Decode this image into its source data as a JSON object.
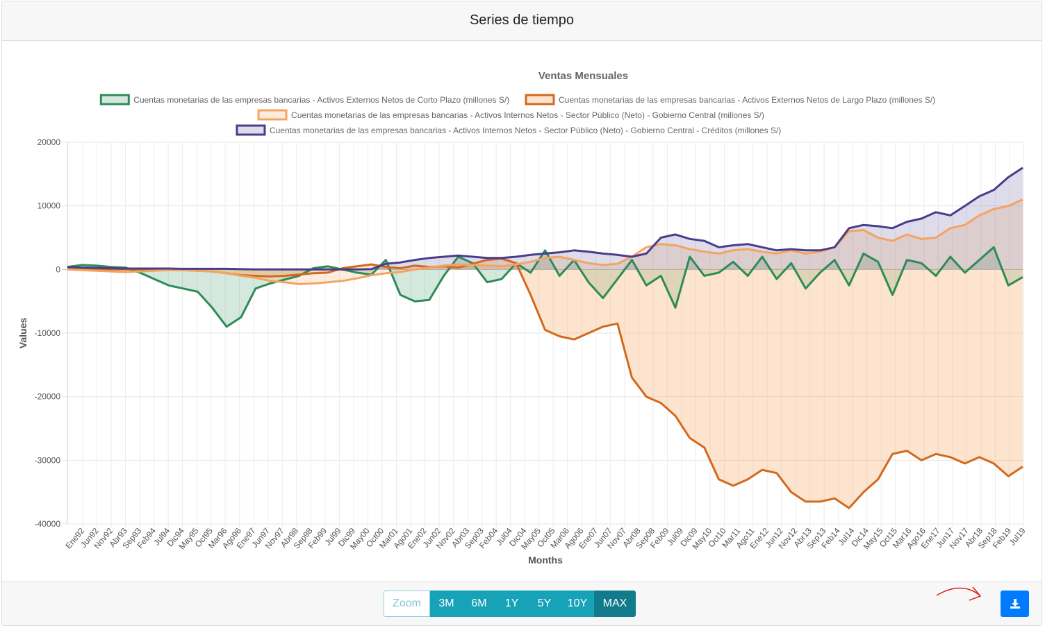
{
  "header": {
    "title": "Series de tiempo"
  },
  "footer": {
    "buttons": [
      "Zoom",
      "3M",
      "6M",
      "1Y",
      "5Y",
      "10Y",
      "MAX"
    ],
    "active": "MAX",
    "download_icon": "download-icon"
  },
  "colors": {
    "green": "#2e8b57",
    "orange_dark": "#d2691e",
    "orange_light": "#f4a460",
    "purple": "#483d8b",
    "primary": "#007bff",
    "info": "#17a2b8"
  },
  "chart_data": {
    "type": "area",
    "title": "Ventas Mensuales",
    "xlabel": "Months",
    "ylabel": "Values",
    "ylim": [
      -40000,
      20000
    ],
    "yticks": [
      20000,
      10000,
      0,
      -10000,
      -20000,
      -30000,
      -40000
    ],
    "grid": true,
    "legend_position": "top",
    "x_tick_labels": [
      "Ene92",
      "Jun92",
      "Nov92",
      "Abr93",
      "Sep93",
      "Feb94",
      "Jul94",
      "Dic94",
      "May95",
      "Oct95",
      "Mar96",
      "Ago96",
      "Ene97",
      "Jun97",
      "Nov97",
      "Abr98",
      "Sep98",
      "Feb99",
      "Jul99",
      "Dic99",
      "May00",
      "Oct00",
      "Mar01",
      "Ago01",
      "Ene02",
      "Jun02",
      "Nov02",
      "Abr03",
      "Sep03",
      "Feb04",
      "Jul04",
      "Dic04",
      "May05",
      "Oct05",
      "Mar06",
      "Ago06",
      "Ene07",
      "Jun07",
      "Nov07",
      "Abr08",
      "Sep08",
      "Feb09",
      "Jul09",
      "Dic09",
      "May10",
      "Oct10",
      "Mar11",
      "Ago11",
      "Ene12",
      "Jun12",
      "Nov12",
      "Abr13",
      "Sep13",
      "Feb14",
      "Jul14",
      "Dic14",
      "May15",
      "Oct15",
      "Mar16",
      "Ago16",
      "Ene17",
      "Jun17",
      "Nov17",
      "Abr18",
      "Sep18",
      "Feb19",
      "Jul19"
    ],
    "series": [
      {
        "name": "Cuentas monetarias de las empresas bancarias - Activos Externos Netos de Corto Plazo (millones S/)",
        "color": "#2e8b57",
        "fill": "rgba(46,139,87,0.2)",
        "values": [
          400,
          700,
          600,
          400,
          300,
          -500,
          -1500,
          -2500,
          -3000,
          -3500,
          -6000,
          -9000,
          -7500,
          -3000,
          -2200,
          -1600,
          -1000,
          200,
          500,
          0,
          -500,
          -800,
          1500,
          -4000,
          -5000,
          -4800,
          -1000,
          2000,
          1000,
          -2000,
          -1500,
          1000,
          -500,
          3000,
          -1000,
          1500,
          -2000,
          -4500,
          -1500,
          1500,
          -2500,
          -1000,
          -6000,
          2000,
          -1000,
          -500,
          1200,
          -1000,
          2000,
          -1500,
          1000,
          -3000,
          -500,
          1500,
          -2500,
          2500,
          1200,
          -4000,
          1500,
          1000,
          -1000,
          2000,
          -500,
          1500,
          3500,
          -2500,
          -1200
        ]
      },
      {
        "name": "Cuentas monetarias de las empresas bancarias - Activos Externos Netos de Largo Plazo (millones S/)",
        "color": "#d2691e",
        "fill": "rgba(244,164,96,0.3)",
        "values": [
          200,
          100,
          50,
          0,
          0,
          0,
          0,
          -50,
          -100,
          -200,
          -300,
          -600,
          -900,
          -1000,
          -1100,
          -1000,
          -800,
          -600,
          -500,
          200,
          500,
          800,
          400,
          200,
          600,
          400,
          500,
          300,
          900,
          1500,
          1700,
          1000,
          -4000,
          -9500,
          -10500,
          -11000,
          -10000,
          -9000,
          -8500,
          -17000,
          -20000,
          -21000,
          -23000,
          -26500,
          -28000,
          -33000,
          -34000,
          -33000,
          -31500,
          -32000,
          -35000,
          -36500,
          -36500,
          -36000,
          -37500,
          -35000,
          -33000,
          -29000,
          -28500,
          -30000,
          -29000,
          -29500,
          -30500,
          -29500,
          -30500,
          -32500,
          -31000
        ]
      },
      {
        "name": "Cuentas monetarias de las empresas bancarias - Activos Internos Netos - Sector Público (Neto) - Gobierno Central (millones S/)",
        "color": "#f4a460",
        "fill": "rgba(244,164,96,0.2)",
        "values": [
          0,
          -100,
          -200,
          -300,
          -400,
          -300,
          -200,
          -100,
          -100,
          -200,
          -300,
          -600,
          -1000,
          -1300,
          -1800,
          -2000,
          -2300,
          -2200,
          -2000,
          -1800,
          -1400,
          -900,
          -600,
          -400,
          0,
          300,
          600,
          800,
          700,
          600,
          500,
          800,
          1200,
          1800,
          2000,
          1500,
          1000,
          700,
          900,
          2000,
          3500,
          4000,
          3800,
          3200,
          2800,
          2500,
          3000,
          3200,
          2800,
          2500,
          3000,
          2500,
          2800,
          3500,
          6000,
          6200,
          5000,
          4500,
          5500,
          4800,
          5000,
          6500,
          7000,
          8500,
          9500,
          10000,
          11000
        ]
      },
      {
        "name": "Cuentas monetarias de las empresas bancarias - Activos Internos Netos - Sector Público (Neto) - Gobierno Central - Créditos (millones S/)",
        "color": "#483d8b",
        "fill": "rgba(72,61,139,0.18)",
        "values": [
          400,
          300,
          250,
          200,
          150,
          150,
          150,
          150,
          100,
          100,
          100,
          100,
          50,
          0,
          0,
          0,
          0,
          0,
          0,
          0,
          0,
          50,
          900,
          1100,
          1500,
          1800,
          2000,
          2200,
          2000,
          1800,
          1800,
          2000,
          2300,
          2500,
          2700,
          3000,
          2800,
          2500,
          2300,
          2000,
          2500,
          5000,
          5500,
          4800,
          4500,
          3500,
          3800,
          4000,
          3500,
          3000,
          3200,
          3000,
          3000,
          3500,
          6500,
          7000,
          6800,
          6500,
          7500,
          8000,
          9000,
          8500,
          10000,
          11500,
          12500,
          14500,
          16000
        ]
      }
    ]
  }
}
